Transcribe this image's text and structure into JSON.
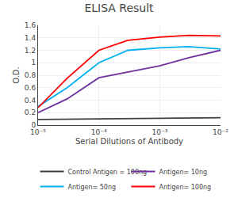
{
  "chart_data": {
    "type": "line",
    "title": "ELISA Result",
    "x_label": "Serial Dilutions of Antibody",
    "y_label": "O.D.",
    "log": "x",
    "xlim": [
      1e-05,
      0.01
    ],
    "xticks": [
      {
        "value": 0.01,
        "label": "10⁻²"
      },
      {
        "value": 0.001,
        "label": "10⁻³"
      },
      {
        "value": 0.0001,
        "label": "10⁻⁴"
      },
      {
        "value": 1e-05,
        "label": "10⁻⁵"
      }
    ],
    "ylim": [
      0,
      1.6
    ],
    "yticks": [
      0,
      0.2,
      0.4,
      0.6,
      0.8,
      1,
      1.2,
      1.4,
      1.6
    ],
    "grid": true,
    "legend": "bottom",
    "series": [
      {
        "name": "Control Antigen = 100ng",
        "color": "#404040",
        "x": [
          0.01,
          0.001,
          0.0001,
          1e-05
        ],
        "values": [
          0.12,
          0.11,
          0.1,
          0.09
        ]
      },
      {
        "name": "Antigen= 10ng",
        "color": "#7030A0",
        "x": [
          0.01,
          0.003,
          0.001,
          0.0003,
          0.0001,
          3e-05,
          1e-05
        ],
        "values": [
          1.2,
          1.08,
          0.95,
          0.85,
          0.76,
          0.42,
          0.2
        ]
      },
      {
        "name": "Antigen= 50ng",
        "color": "#00B0F0",
        "x": [
          0.01,
          0.003,
          0.001,
          0.0003,
          0.0001,
          3e-05,
          1e-05
        ],
        "values": [
          1.22,
          1.26,
          1.24,
          1.2,
          1.0,
          0.6,
          0.3
        ]
      },
      {
        "name": "Antigen= 100ng",
        "color": "#FF0000",
        "x": [
          0.01,
          0.003,
          0.001,
          0.0003,
          0.0001,
          3e-05,
          1e-05
        ],
        "values": [
          1.43,
          1.44,
          1.41,
          1.36,
          1.2,
          0.75,
          0.28
        ]
      }
    ]
  }
}
